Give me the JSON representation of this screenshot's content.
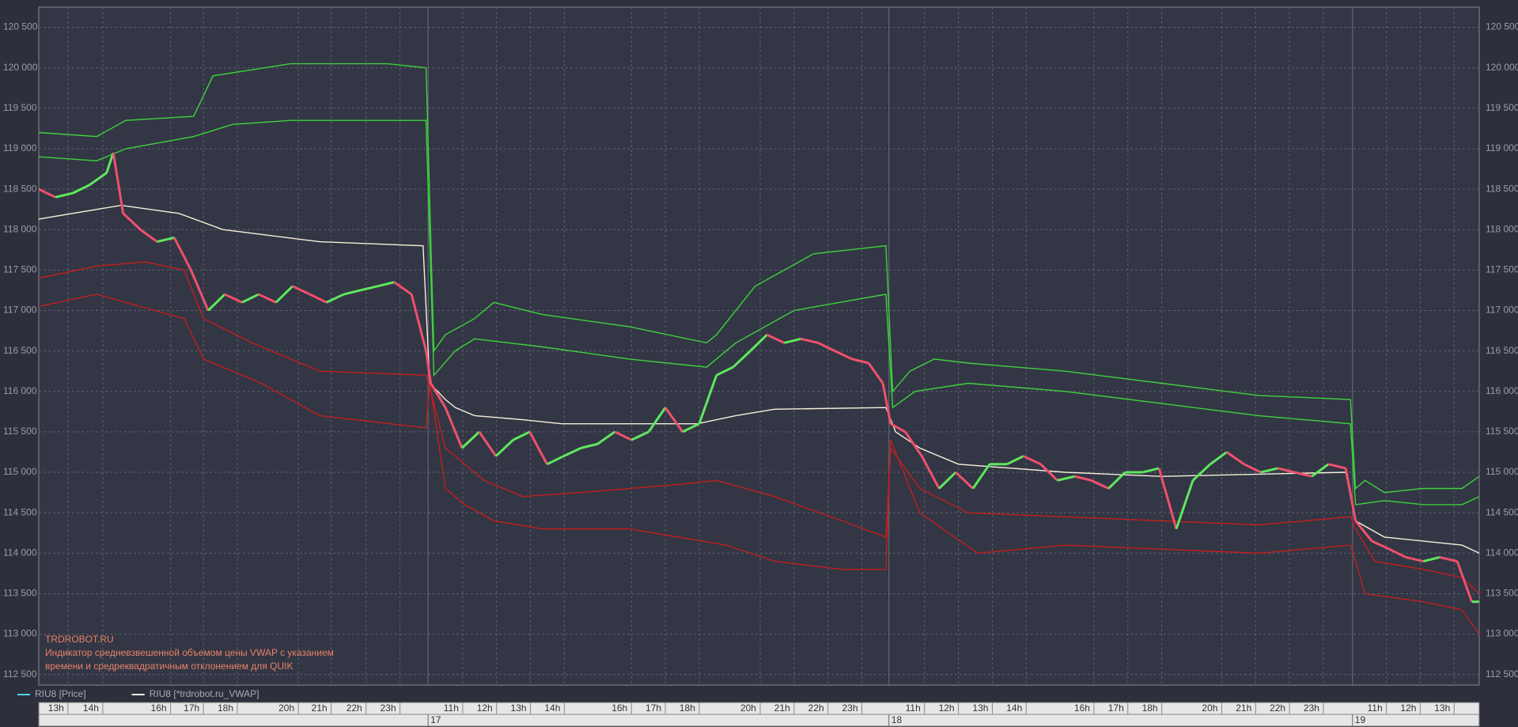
{
  "chart_data": {
    "type": "line",
    "annotations": [
      "TRDROBOT.RU",
      "Индикатор средневзвешенной объемом цены VWAP с указанием",
      "времени и средреквадратичным отклонением для QUIK"
    ],
    "ylim": [
      112370,
      120750
    ],
    "yticks": [
      {
        "value": 112500,
        "label": "112 500"
      },
      {
        "value": 113000,
        "label": "113 000"
      },
      {
        "value": 113500,
        "label": "113 500"
      },
      {
        "value": 114000,
        "label": "114 000"
      },
      {
        "value": 114500,
        "label": "114 500"
      },
      {
        "value": 115000,
        "label": "115 000"
      },
      {
        "value": 115500,
        "label": "115 500"
      },
      {
        "value": 116000,
        "label": "116 000"
      },
      {
        "value": 116500,
        "label": "116 500"
      },
      {
        "value": 117000,
        "label": "117 000"
      },
      {
        "value": 117500,
        "label": "117 500"
      },
      {
        "value": 118000,
        "label": "118 000"
      },
      {
        "value": 118500,
        "label": "118 500"
      },
      {
        "value": 119000,
        "label": "119 000"
      },
      {
        "value": 119500,
        "label": "119 500"
      },
      {
        "value": 120000,
        "label": "120 000"
      },
      {
        "value": 120500,
        "label": "120 500"
      }
    ],
    "xlim": [
      0,
      42.51
    ],
    "xticks": [
      {
        "value": 0.86,
        "label": "13h"
      },
      {
        "value": 1.89,
        "label": "14h"
      },
      {
        "value": 3.89,
        "label": "16h"
      },
      {
        "value": 4.86,
        "label": "17h"
      },
      {
        "value": 5.86,
        "label": "18h"
      },
      {
        "value": 7.66,
        "label": "20h"
      },
      {
        "value": 8.63,
        "label": "21h"
      },
      {
        "value": 9.66,
        "label": "22h"
      },
      {
        "value": 10.66,
        "label": "23h"
      },
      {
        "value": 12.51,
        "label": "11h"
      },
      {
        "value": 13.51,
        "label": "12h"
      },
      {
        "value": 14.51,
        "label": "13h"
      },
      {
        "value": 15.51,
        "label": "14h"
      },
      {
        "value": 17.49,
        "label": "16h"
      },
      {
        "value": 18.49,
        "label": "17h"
      },
      {
        "value": 19.49,
        "label": "18h"
      },
      {
        "value": 21.29,
        "label": "20h"
      },
      {
        "value": 22.29,
        "label": "21h"
      },
      {
        "value": 23.29,
        "label": "22h"
      },
      {
        "value": 24.29,
        "label": "23h"
      },
      {
        "value": 26.14,
        "label": "11h"
      },
      {
        "value": 27.14,
        "label": "12h"
      },
      {
        "value": 28.14,
        "label": "13h"
      },
      {
        "value": 29.14,
        "label": "14h"
      },
      {
        "value": 31.14,
        "label": "16h"
      },
      {
        "value": 32.14,
        "label": "17h"
      },
      {
        "value": 33.14,
        "label": "18h"
      },
      {
        "value": 34.91,
        "label": "20h"
      },
      {
        "value": 35.91,
        "label": "21h"
      },
      {
        "value": 36.91,
        "label": "22h"
      },
      {
        "value": 37.91,
        "label": "23h"
      },
      {
        "value": 39.77,
        "label": "11h"
      },
      {
        "value": 40.77,
        "label": "12h"
      },
      {
        "value": 41.77,
        "label": "13h"
      }
    ],
    "day_ticks": [
      {
        "value": 11.49,
        "label": "17"
      },
      {
        "value": 25.09,
        "label": "18"
      },
      {
        "value": 38.77,
        "label": "19"
      }
    ],
    "grid": true,
    "series": [
      {
        "name": "RIU8 [Price]",
        "color": "#4fd6e0",
        "up_color": "#5ee85e",
        "down_color": "#f0506e",
        "x": [
          0,
          0.49,
          1,
          1.49,
          2,
          2.2,
          2.49,
          3,
          3.49,
          4,
          4.49,
          5,
          5.49,
          6,
          6.49,
          7,
          7.49,
          8,
          8.49,
          9,
          9.49,
          10,
          10.49,
          11,
          11.43,
          11.57,
          12,
          12.49,
          13,
          13.49,
          14,
          14.49,
          15,
          15.49,
          16,
          16.49,
          17,
          17.49,
          18,
          18.49,
          19,
          19.49,
          20,
          20.49,
          21,
          21.49,
          22,
          22.49,
          23,
          23.49,
          24,
          24.49,
          24.91,
          25.14,
          25.57,
          26.06,
          26.57,
          27.06,
          27.57,
          28.06,
          28.57,
          29.06,
          29.57,
          30.06,
          30.57,
          31.06,
          31.57,
          32.06,
          32.57,
          33.06,
          33.57,
          34.06,
          34.57,
          35.06,
          35.57,
          36.06,
          36.57,
          37.06,
          37.57,
          38.06,
          38.57,
          38.86,
          39.34,
          39.86,
          40.34,
          40.86,
          41.34,
          41.86,
          42.29,
          42.51
        ],
        "values": [
          118500,
          118400,
          118450,
          118550,
          118700,
          118950,
          118200,
          118000,
          117850,
          117900,
          117500,
          117000,
          117200,
          117100,
          117200,
          117100,
          117300,
          117200,
          117100,
          117200,
          117250,
          117300,
          117350,
          117200,
          116500,
          116100,
          115800,
          115300,
          115500,
          115200,
          115400,
          115500,
          115100,
          115200,
          115300,
          115350,
          115500,
          115400,
          115500,
          115800,
          115500,
          115600,
          116200,
          116300,
          116500,
          116700,
          116600,
          116650,
          116600,
          116500,
          116400,
          116350,
          116100,
          115600,
          115500,
          115200,
          114800,
          115000,
          114800,
          115100,
          115100,
          115200,
          115100,
          114900,
          114950,
          114900,
          114800,
          115000,
          115000,
          115050,
          114300,
          114900,
          115100,
          115250,
          115100,
          115000,
          115050,
          115000,
          114950,
          115100,
          115050,
          114400,
          114150,
          114050,
          113950,
          113900,
          113950,
          113900,
          113400,
          113400
        ]
      },
      {
        "name": "RIU8 [*trdrobot.ru_VWAP]",
        "color": "#f5f0dc",
        "x": [
          0,
          2.43,
          4.14,
          5.43,
          8.29,
          11.34,
          11.54,
          12,
          12.29,
          12.86,
          14.29,
          15.43,
          19.43,
          20,
          20.57,
          21.71,
          25,
          25.29,
          26,
          27.14,
          30.29,
          33.14,
          38.57,
          38.86,
          39.71,
          42,
          42.51
        ],
        "values": [
          118130,
          118300,
          118200,
          118000,
          117850,
          117800,
          116100,
          115900,
          115800,
          115700,
          115650,
          115600,
          115600,
          115650,
          115700,
          115780,
          115800,
          115500,
          115300,
          115100,
          115000,
          114950,
          115000,
          114400,
          114200,
          114100,
          114000
        ]
      },
      {
        "color": "#3ed13e",
        "x": [
          0,
          1.71,
          2.57,
          4.57,
          5.14,
          7.43,
          10.29,
          11.43,
          11.66,
          12,
          12.86,
          13.43,
          14.86,
          17.43,
          19.71,
          20,
          21.14,
          22.86,
          25,
          25.2,
          25.71,
          26.43,
          27.43,
          30.29,
          33.14,
          36,
          38.71,
          38.86,
          39.14,
          39.71,
          40.86,
          42,
          42.51
        ],
        "values": [
          119200,
          119150,
          119350,
          119400,
          119900,
          120050,
          120050,
          120000,
          116500,
          116700,
          116900,
          117100,
          116950,
          116800,
          116600,
          116700,
          117300,
          117700,
          117800,
          116000,
          116250,
          116400,
          116350,
          116250,
          116100,
          115950,
          115900,
          114800,
          114900,
          114750,
          114800,
          114800,
          114950
        ]
      },
      {
        "color": "#3ed13e",
        "x": [
          0,
          1.71,
          2.57,
          4.57,
          5.71,
          7.43,
          11.43,
          11.66,
          12.29,
          12.86,
          14.86,
          17.43,
          19.71,
          20.57,
          22.29,
          25,
          25.2,
          25.86,
          27.43,
          30.29,
          33.14,
          36,
          38.71,
          38.86,
          39.71,
          40.86,
          42,
          42.51
        ],
        "values": [
          118900,
          118850,
          119000,
          119150,
          119300,
          119350,
          119350,
          116200,
          116500,
          116650,
          116550,
          116400,
          116300,
          116600,
          117000,
          117200,
          115800,
          116000,
          116100,
          116000,
          115850,
          115700,
          115600,
          114600,
          114650,
          114600,
          114600,
          114700
        ]
      },
      {
        "color": "#c41e1e",
        "x": [
          0,
          1.71,
          3.14,
          4.29,
          4.86,
          6.29,
          8.29,
          11.43,
          11.57,
          12,
          12.29,
          13.14,
          14.29,
          16,
          18.86,
          20,
          21.71,
          23.71,
          25,
          25.14,
          26,
          27.43,
          30.29,
          33.14,
          36,
          38.71,
          38.86,
          39.43,
          40.86,
          42,
          42.51
        ],
        "values": [
          117400,
          117550,
          117600,
          117500,
          116900,
          116600,
          116250,
          116200,
          116000,
          115300,
          115200,
          114900,
          114700,
          114750,
          114850,
          114900,
          114700,
          114400,
          114200,
          115300,
          114800,
          114500,
          114450,
          114400,
          114350,
          114450,
          114300,
          113900,
          113800,
          113700,
          113500
        ]
      },
      {
        "color": "#c41e1e",
        "x": [
          0,
          1.71,
          3.43,
          4.29,
          4.86,
          6.57,
          8.29,
          11.43,
          11.54,
          12,
          12.57,
          13.43,
          14.86,
          17.43,
          20.29,
          21.71,
          23.71,
          25,
          25.14,
          26,
          27.71,
          30.29,
          33.14,
          36,
          38.71,
          38.86,
          39.14,
          40.86,
          42,
          42.51
        ],
        "values": [
          117050,
          117200,
          117000,
          116900,
          116400,
          116100,
          115700,
          115550,
          116100,
          114800,
          114600,
          114400,
          114300,
          114300,
          114100,
          113900,
          113800,
          113800,
          115400,
          114500,
          114000,
          114100,
          114050,
          114000,
          114100,
          113900,
          113500,
          113400,
          113300,
          113000
        ]
      }
    ]
  }
}
